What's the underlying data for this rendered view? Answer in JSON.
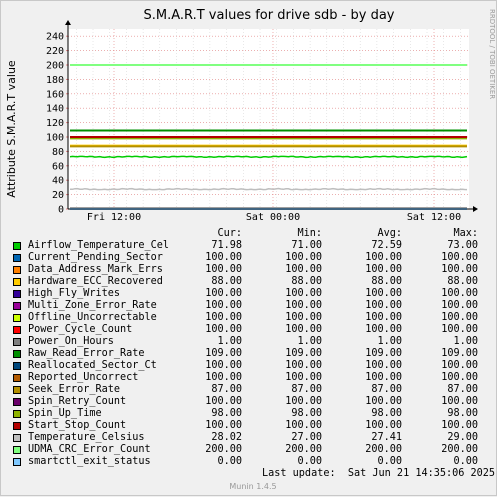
{
  "chart_data": {
    "type": "line",
    "title": "S.M.A.R.T values for drive sdb - by day",
    "ylabel": "Attribute S.M.A.R.T value",
    "side_label": "RRDTOOL / TOBI OETIKER",
    "ylim": [
      0,
      250
    ],
    "yticks": [
      "0",
      "20",
      "40",
      "60",
      "80",
      "100",
      "120",
      "140",
      "160",
      "180",
      "200",
      "220",
      "240"
    ],
    "xticks": [
      "Fri 12:00",
      "Sat 00:00",
      "Sat 12:00"
    ],
    "grid": true,
    "columns": [
      "Cur:",
      "Min:",
      "Avg:",
      "Max:"
    ],
    "series": [
      {
        "name": "Airflow_Temperature_Cel",
        "color": "#00cc00",
        "cur": "71.98",
        "min": "71.00",
        "avg": "72.59",
        "max": "73.00"
      },
      {
        "name": "Current_Pending_Sector",
        "color": "#0066b3",
        "cur": "100.00",
        "min": "100.00",
        "avg": "100.00",
        "max": "100.00"
      },
      {
        "name": "Data_Address_Mark_Errs",
        "color": "#ff8000",
        "cur": "100.00",
        "min": "100.00",
        "avg": "100.00",
        "max": "100.00"
      },
      {
        "name": "Hardware_ECC_Recovered",
        "color": "#ffcc00",
        "cur": "88.00",
        "min": "88.00",
        "avg": "88.00",
        "max": "88.00"
      },
      {
        "name": "High_Fly_Writes",
        "color": "#330099",
        "cur": "100.00",
        "min": "100.00",
        "avg": "100.00",
        "max": "100.00"
      },
      {
        "name": "Multi_Zone_Error_Rate",
        "color": "#990099",
        "cur": "100.00",
        "min": "100.00",
        "avg": "100.00",
        "max": "100.00"
      },
      {
        "name": "Offline_Uncorrectable",
        "color": "#ccff00",
        "cur": "100.00",
        "min": "100.00",
        "avg": "100.00",
        "max": "100.00"
      },
      {
        "name": "Power_Cycle_Count",
        "color": "#ff0000",
        "cur": "100.00",
        "min": "100.00",
        "avg": "100.00",
        "max": "100.00"
      },
      {
        "name": "Power_On_Hours",
        "color": "#808080",
        "cur": "1.00",
        "min": "1.00",
        "avg": "1.00",
        "max": "1.00"
      },
      {
        "name": "Raw_Read_Error_Rate",
        "color": "#008f00",
        "cur": "109.00",
        "min": "109.00",
        "avg": "109.00",
        "max": "109.00"
      },
      {
        "name": "Reallocated_Sector_Ct",
        "color": "#00487d",
        "cur": "100.00",
        "min": "100.00",
        "avg": "100.00",
        "max": "100.00"
      },
      {
        "name": "Reported_Uncorrect",
        "color": "#b35a00",
        "cur": "100.00",
        "min": "100.00",
        "avg": "100.00",
        "max": "100.00"
      },
      {
        "name": "Seek_Error_Rate",
        "color": "#b38f00",
        "cur": "87.00",
        "min": "87.00",
        "avg": "87.00",
        "max": "87.00"
      },
      {
        "name": "Spin_Retry_Count",
        "color": "#6b006b",
        "cur": "100.00",
        "min": "100.00",
        "avg": "100.00",
        "max": "100.00"
      },
      {
        "name": "Spin_Up_Time",
        "color": "#8fb300",
        "cur": "98.00",
        "min": "98.00",
        "avg": "98.00",
        "max": "98.00"
      },
      {
        "name": "Start_Stop_Count",
        "color": "#b30000",
        "cur": "100.00",
        "min": "100.00",
        "avg": "100.00",
        "max": "100.00"
      },
      {
        "name": "Temperature_Celsius",
        "color": "#bebebe",
        "cur": "28.02",
        "min": "27.00",
        "avg": "27.41",
        "max": "29.00"
      },
      {
        "name": "UDMA_CRC_Error_Count",
        "color": "#80ff80",
        "cur": "200.00",
        "min": "200.00",
        "avg": "200.00",
        "max": "200.00"
      },
      {
        "name": "smartctl_exit_status",
        "color": "#80c9ff",
        "cur": "0.00",
        "min": "0.00",
        "avg": "0.00",
        "max": "0.00"
      }
    ]
  },
  "footer": {
    "last_update": "Last update:  Sat Jun 21 14:35:06 2025",
    "version": "Munin 1.4.5"
  }
}
